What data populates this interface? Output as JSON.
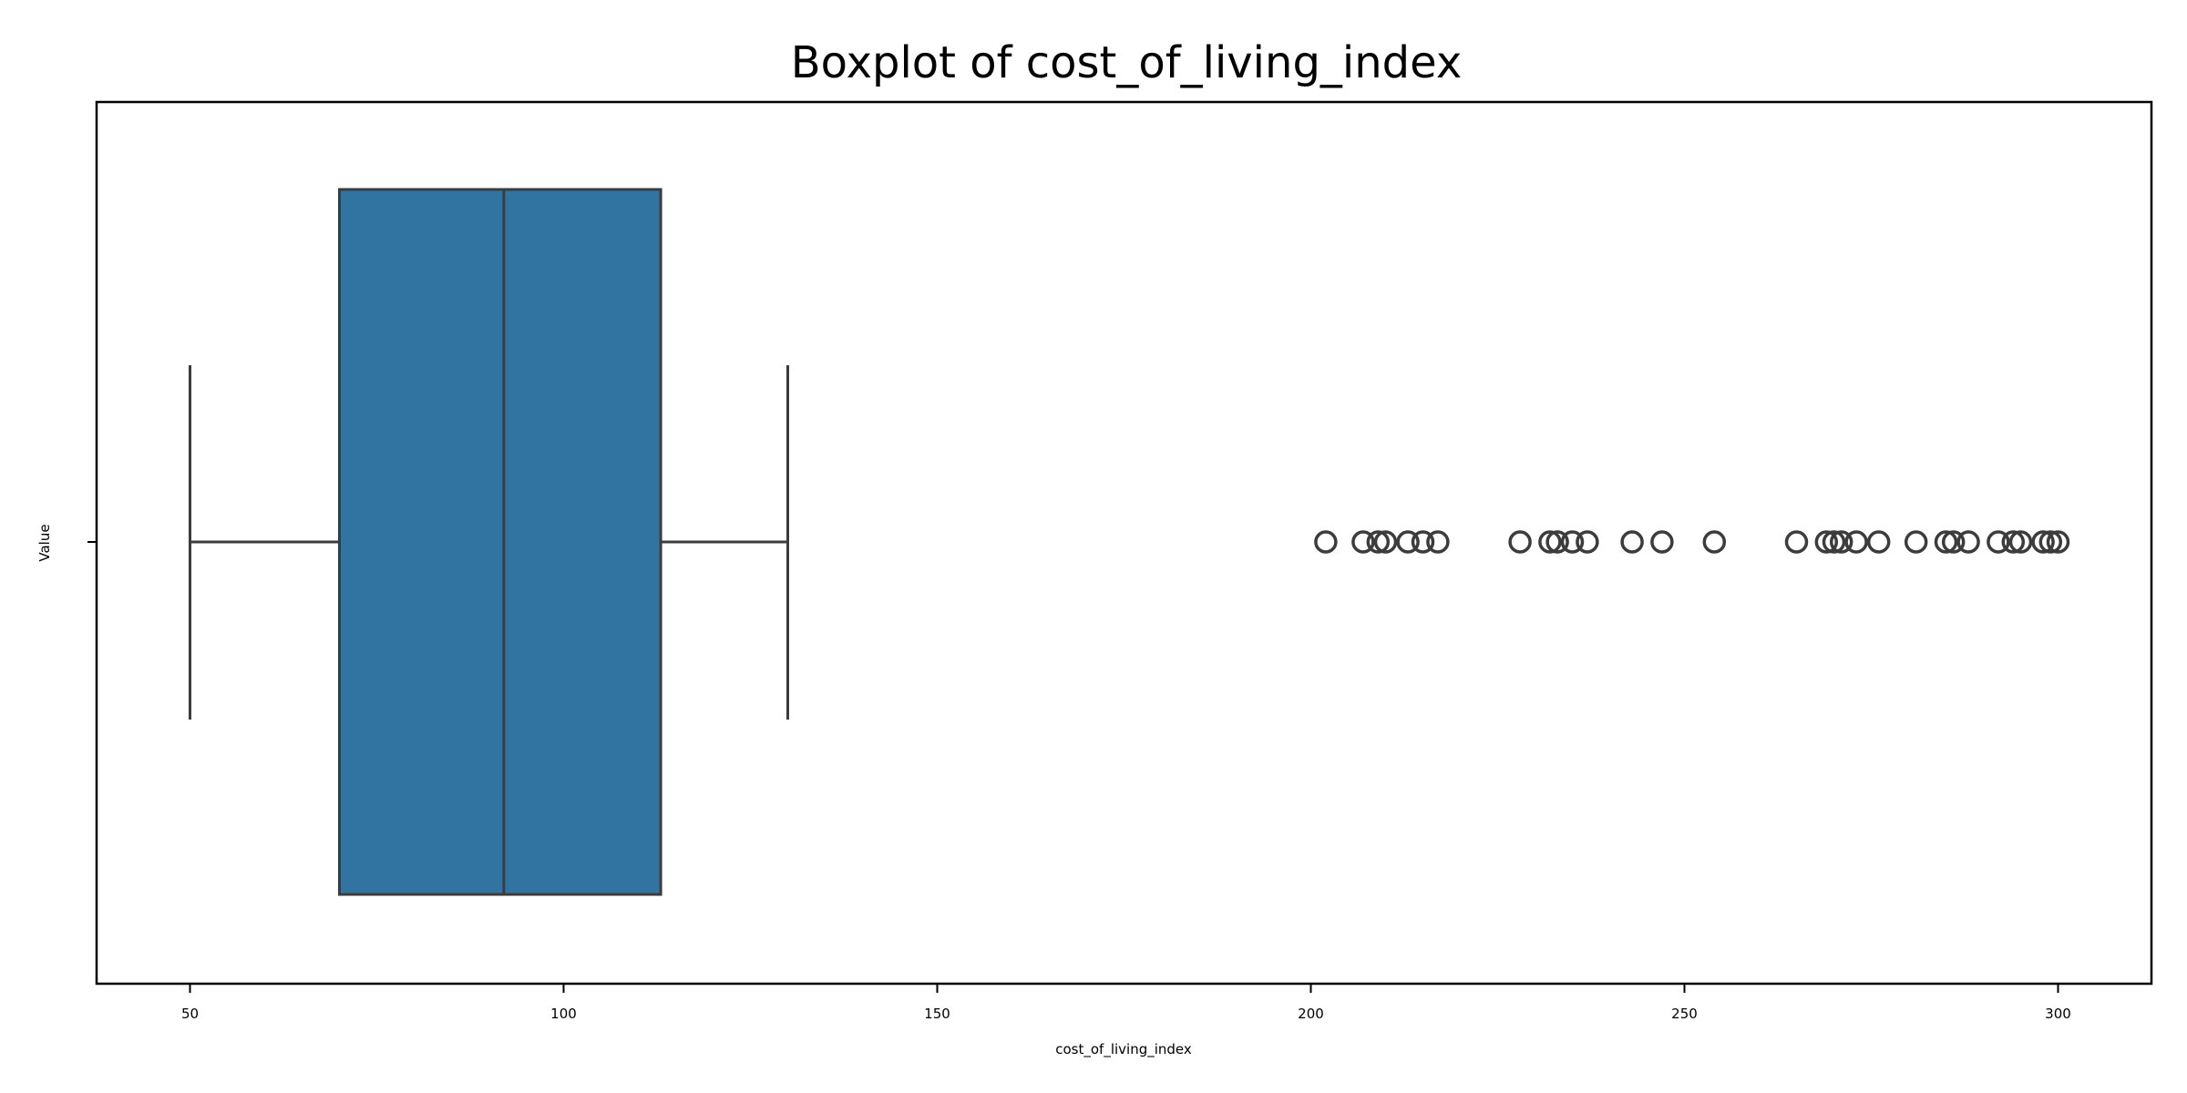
{
  "chart_data": {
    "type": "boxplot",
    "orientation": "horizontal",
    "title": "Boxplot of cost_of_living_index",
    "xlabel": "cost_of_living_index",
    "ylabel": "Value",
    "xlim": [
      37.5,
      312.5
    ],
    "x_ticks": [
      50,
      100,
      150,
      200,
      250,
      300
    ],
    "x_tick_labels": [
      "50",
      "100",
      "150",
      "200",
      "250",
      "300"
    ],
    "grid": false,
    "box": {
      "whisker_low": 50,
      "q1": 70,
      "median": 92,
      "q3": 113,
      "whisker_high": 130,
      "fill_color": "#3274a1",
      "line_color": "#3c3c3c"
    },
    "outliers": [
      202,
      207,
      209,
      210,
      213,
      215,
      217,
      228,
      232,
      233,
      235,
      237,
      243,
      247,
      254,
      265,
      269,
      270,
      271,
      273,
      276,
      281,
      285,
      286,
      288,
      292,
      294,
      295,
      298,
      299,
      300
    ]
  }
}
